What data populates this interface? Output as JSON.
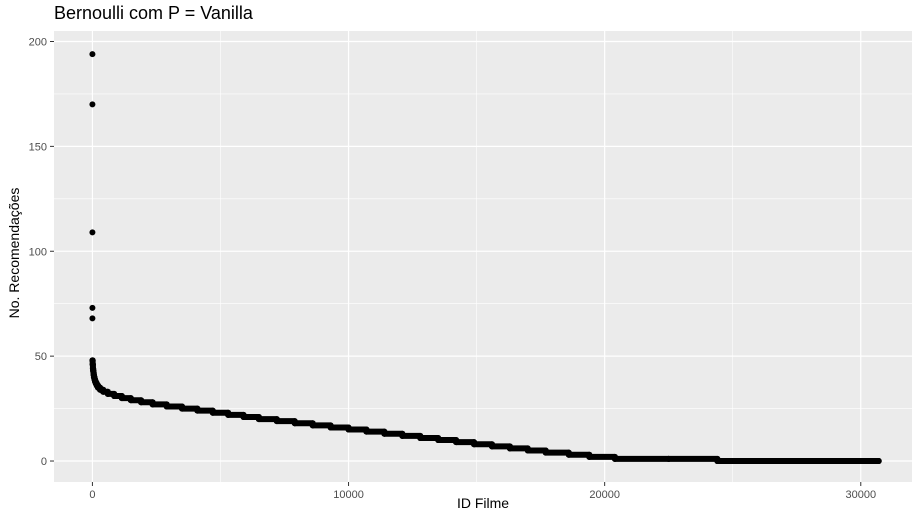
{
  "chart_data": {
    "type": "scatter",
    "title": "Bernoulli com P = Vanilla",
    "xlabel": "ID Filme",
    "ylabel": "No. Recomendações",
    "xlim": [
      -1500,
      32000
    ],
    "ylim": [
      -10,
      205
    ],
    "xticks": [
      0,
      10000,
      20000,
      30000
    ],
    "xtick_labels": [
      "0",
      "10000",
      "20000",
      "30000"
    ],
    "yticks": [
      0,
      50,
      100,
      150,
      200
    ],
    "ytick_labels": [
      "0",
      "50",
      "100",
      "150",
      "200"
    ],
    "grid": true,
    "legend": "none",
    "colors": {
      "panel": "#ebebeb",
      "grid": "#ffffff",
      "point": "#000000"
    },
    "series": [
      {
        "points": [
          [
            0,
            194
          ],
          [
            0,
            170
          ],
          [
            0,
            109
          ],
          [
            0,
            73
          ],
          [
            0,
            68
          ],
          [
            0,
            48
          ],
          [
            10,
            46
          ],
          [
            20,
            44
          ],
          [
            30,
            43
          ],
          [
            40,
            42
          ],
          [
            50,
            41
          ],
          [
            60,
            40
          ],
          [
            80,
            39
          ],
          [
            100,
            38
          ],
          [
            130,
            37
          ],
          [
            170,
            36
          ],
          [
            220,
            35
          ],
          [
            300,
            34
          ],
          [
            420,
            33
          ],
          [
            600,
            32
          ],
          [
            850,
            31
          ],
          [
            1150,
            30
          ],
          [
            1500,
            29
          ],
          [
            1900,
            28
          ],
          [
            2350,
            27
          ],
          [
            2900,
            26
          ],
          [
            3500,
            25
          ],
          [
            4100,
            24
          ],
          [
            4700,
            23
          ],
          [
            5300,
            22
          ],
          [
            5900,
            21
          ],
          [
            6500,
            20
          ],
          [
            7200,
            19
          ],
          [
            7900,
            18
          ],
          [
            8600,
            17
          ],
          [
            9300,
            16
          ],
          [
            10000,
            15
          ],
          [
            10700,
            14
          ],
          [
            11400,
            13
          ],
          [
            12100,
            12
          ],
          [
            12800,
            11
          ],
          [
            13500,
            10
          ],
          [
            14200,
            9
          ],
          [
            14900,
            8
          ],
          [
            15600,
            7
          ],
          [
            16300,
            6
          ],
          [
            17000,
            5
          ],
          [
            17700,
            4
          ],
          [
            18600,
            3
          ],
          [
            19400,
            2
          ],
          [
            20400,
            1
          ],
          [
            22500,
            1
          ],
          [
            24400,
            0
          ],
          [
            26500,
            0
          ],
          [
            28500,
            0
          ],
          [
            30700,
            0
          ]
        ]
      }
    ]
  }
}
